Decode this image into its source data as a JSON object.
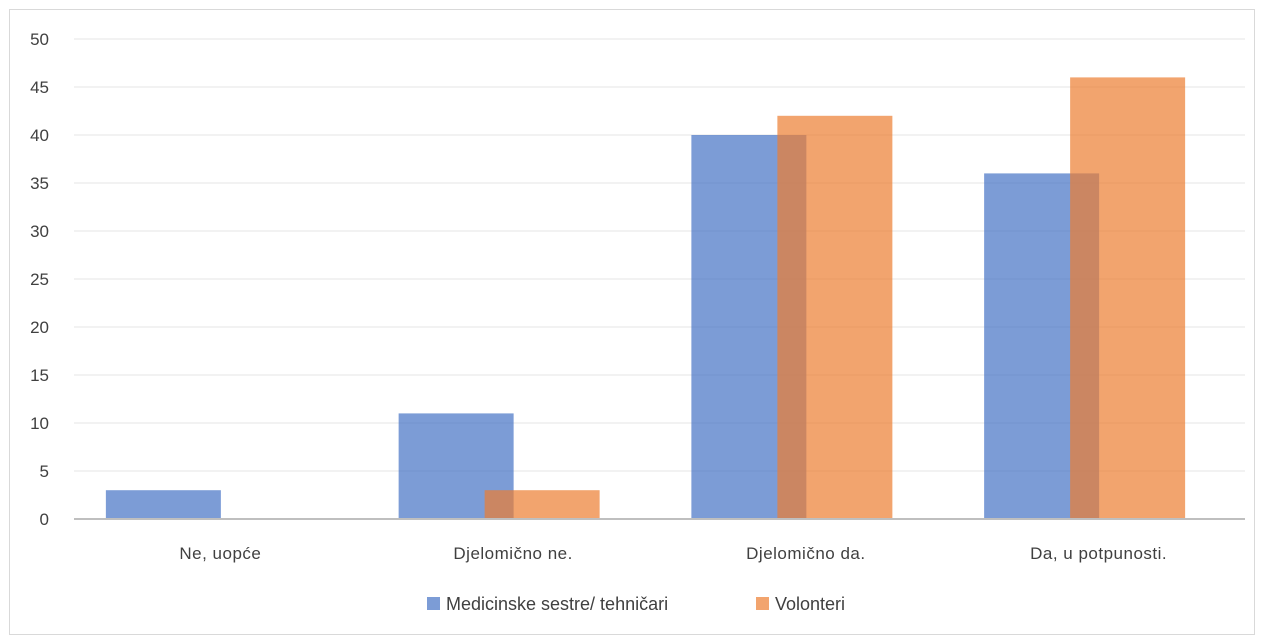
{
  "chart_data": {
    "type": "bar",
    "categories": [
      "Ne, uopće",
      "Djelomično ne.",
      "Djelomično da.",
      "Da, u potpunosti."
    ],
    "series": [
      {
        "name": "Medicinske sestre/ tehničari",
        "values": [
          3,
          11,
          40,
          36
        ],
        "color": "#4472C4"
      },
      {
        "name": "Volonteri",
        "values": [
          0,
          3,
          42,
          46
        ],
        "color": "#ED7D31"
      }
    ],
    "title": "",
    "xlabel": "",
    "ylabel": "",
    "ylim": [
      0,
      50
    ],
    "yticks": [
      0,
      5,
      10,
      15,
      20,
      25,
      30,
      35,
      40,
      45,
      50
    ],
    "grid": true,
    "legend": "bottom",
    "bar_opacity": 0.7,
    "bars_overlap": true
  }
}
